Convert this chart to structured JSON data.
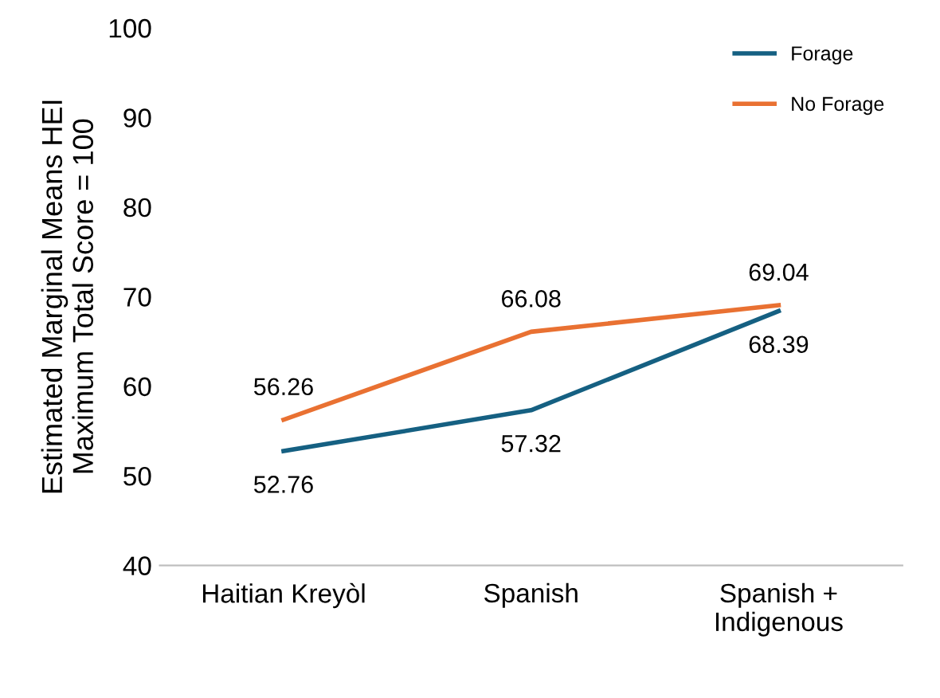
{
  "chart_data": {
    "type": "line",
    "ylabel": "Estimated Marginal Means HEI\nMaximum Total Score = 100",
    "categories": [
      "Haitian Kreyòl",
      "Spanish",
      "Spanish +\nIndigenous"
    ],
    "series": [
      {
        "name": "Forage",
        "color": "#156082",
        "values": [
          52.76,
          57.32,
          68.39
        ]
      },
      {
        "name": "No Forage",
        "color": "#e97132",
        "values": [
          56.26,
          66.08,
          69.04
        ]
      }
    ],
    "ylim": [
      40,
      100
    ],
    "yticks": [
      40,
      50,
      60,
      70,
      80,
      90,
      100
    ],
    "data_labels": true,
    "legend": "top right",
    "grid": false,
    "marker": "none",
    "line_style": "solid"
  }
}
